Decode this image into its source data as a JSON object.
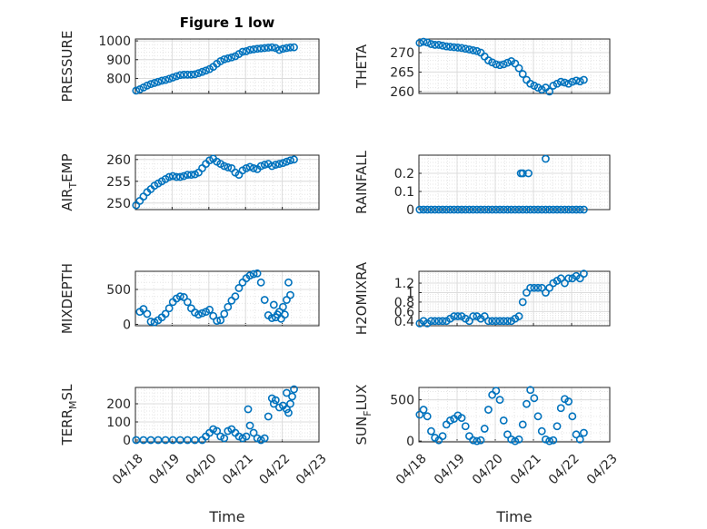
{
  "figure": {
    "title": "Figure 1 low",
    "xlabel": "Time"
  },
  "colors": {
    "marker": "#0072BD",
    "grid": "#dcdcdc",
    "axis": "#262626"
  },
  "chart_data": [
    {
      "type": "scatter",
      "name": "pressure",
      "ylabel": "PRESSURE",
      "xlim": [
        0,
        5
      ],
      "ylim": [
        720,
        1010
      ],
      "xticks": [
        0,
        1,
        2,
        3,
        4,
        5
      ],
      "xticklabels": [
        "04/18",
        "04/19",
        "04/20",
        "04/21",
        "04/22",
        "04/23"
      ],
      "yticks": [
        800,
        900,
        1000
      ],
      "yticklabels": [
        "800",
        "900",
        "1000"
      ],
      "title": "Figure 1 low",
      "grid": true,
      "x": [
        0.0,
        0.1,
        0.2,
        0.3,
        0.4,
        0.5,
        0.6,
        0.7,
        0.8,
        0.9,
        1.0,
        1.1,
        1.2,
        1.3,
        1.4,
        1.5,
        1.6,
        1.7,
        1.8,
        1.9,
        2.0,
        2.1,
        2.2,
        2.3,
        2.4,
        2.5,
        2.6,
        2.7,
        2.8,
        2.9,
        3.0,
        3.1,
        3.2,
        3.3,
        3.4,
        3.5,
        3.6,
        3.7,
        3.8,
        3.9,
        4.0,
        4.1,
        4.2,
        4.3
      ],
      "y": [
        735,
        742,
        752,
        762,
        770,
        776,
        782,
        788,
        792,
        798,
        805,
        812,
        818,
        820,
        820,
        820,
        822,
        828,
        835,
        842,
        850,
        862,
        878,
        892,
        902,
        907,
        912,
        918,
        930,
        942,
        945,
        952,
        955,
        958,
        960,
        962,
        964,
        966,
        962,
        952,
        958,
        962,
        965,
        966
      ]
    },
    {
      "type": "scatter",
      "name": "theta",
      "ylabel": "THETA",
      "xlim": [
        0,
        5
      ],
      "ylim": [
        259.5,
        273.5
      ],
      "xticks": [
        0,
        1,
        2,
        3,
        4,
        5
      ],
      "xticklabels": [
        "04/18",
        "04/19",
        "04/20",
        "04/21",
        "04/22",
        "04/23"
      ],
      "yticks": [
        260,
        265,
        270
      ],
      "yticklabels": [
        "260",
        "265",
        "270"
      ],
      "grid": true,
      "x": [
        0.0,
        0.1,
        0.2,
        0.3,
        0.4,
        0.5,
        0.6,
        0.7,
        0.8,
        0.9,
        1.0,
        1.1,
        1.2,
        1.3,
        1.4,
        1.5,
        1.6,
        1.7,
        1.8,
        1.9,
        2.0,
        2.1,
        2.2,
        2.3,
        2.4,
        2.5,
        2.6,
        2.7,
        2.8,
        2.9,
        3.0,
        3.1,
        3.2,
        3.3,
        3.4,
        3.5,
        3.6,
        3.7,
        3.8,
        3.9,
        4.0,
        4.1,
        4.2,
        4.3
      ],
      "y": [
        272.5,
        272.8,
        272.6,
        272.2,
        272.0,
        272.0,
        271.8,
        271.6,
        271.5,
        271.4,
        271.3,
        271.2,
        271.0,
        270.8,
        270.6,
        270.4,
        270.0,
        269.0,
        268.0,
        267.5,
        267.0,
        266.8,
        267.0,
        267.4,
        267.8,
        267.2,
        266.0,
        264.5,
        263.0,
        262.0,
        261.5,
        261.0,
        260.5,
        261.0,
        260.0,
        261.5,
        262.0,
        262.5,
        262.3,
        262.0,
        262.5,
        262.8,
        262.6,
        263.0
      ]
    },
    {
      "type": "scatter",
      "name": "air_temp",
      "ylabel": "AIR_TEMP",
      "xlim": [
        0,
        5
      ],
      "ylim": [
        248.5,
        261
      ],
      "xticks": [
        0,
        1,
        2,
        3,
        4,
        5
      ],
      "xticklabels": [
        "04/18",
        "04/19",
        "04/20",
        "04/21",
        "04/22",
        "04/23"
      ],
      "yticks": [
        250,
        255,
        260
      ],
      "yticklabels": [
        "250",
        "255",
        "260"
      ],
      "grid": true,
      "x": [
        0.0,
        0.1,
        0.2,
        0.3,
        0.4,
        0.5,
        0.6,
        0.7,
        0.8,
        0.9,
        1.0,
        1.1,
        1.2,
        1.3,
        1.4,
        1.5,
        1.6,
        1.7,
        1.8,
        1.9,
        2.0,
        2.1,
        2.2,
        2.3,
        2.4,
        2.5,
        2.6,
        2.7,
        2.8,
        2.9,
        3.0,
        3.1,
        3.2,
        3.3,
        3.4,
        3.5,
        3.6,
        3.7,
        3.8,
        3.9,
        4.0,
        4.1,
        4.2,
        4.3
      ],
      "y": [
        249.5,
        250.5,
        251.5,
        252.5,
        253.2,
        254.0,
        254.5,
        255.0,
        255.5,
        256.0,
        256.2,
        256.0,
        256.0,
        256.2,
        256.5,
        256.5,
        256.6,
        257.0,
        258.0,
        259.0,
        259.8,
        260.2,
        259.5,
        259.0,
        258.5,
        258.2,
        258.0,
        257.0,
        256.5,
        257.5,
        258.0,
        258.3,
        258.0,
        257.8,
        258.5,
        258.8,
        259.0,
        258.5,
        258.8,
        259.0,
        259.2,
        259.5,
        259.8,
        260.0
      ]
    },
    {
      "type": "scatter",
      "name": "rainfall",
      "ylabel": "RAINFALL",
      "xlim": [
        0,
        5
      ],
      "ylim": [
        0,
        0.3
      ],
      "xticks": [
        0,
        1,
        2,
        3,
        4,
        5
      ],
      "xticklabels": [
        "04/18",
        "04/19",
        "04/20",
        "04/21",
        "04/22",
        "04/23"
      ],
      "yticks": [
        0,
        0.1,
        0.2
      ],
      "yticklabels": [
        "0",
        "0.1",
        "0.2"
      ],
      "grid": true,
      "x": [
        0.0,
        0.1,
        0.2,
        0.3,
        0.4,
        0.5,
        0.6,
        0.7,
        0.8,
        0.9,
        1.0,
        1.1,
        1.2,
        1.3,
        1.4,
        1.5,
        1.6,
        1.7,
        1.8,
        1.9,
        2.0,
        2.1,
        2.2,
        2.3,
        2.4,
        2.5,
        2.6,
        2.7,
        2.8,
        2.9,
        3.0,
        3.1,
        3.2,
        3.3,
        3.4,
        3.5,
        3.6,
        3.7,
        3.8,
        3.9,
        4.0,
        4.1,
        4.2,
        4.3,
        2.65,
        2.7,
        2.85,
        3.3
      ],
      "y": [
        0,
        0,
        0,
        0,
        0,
        0,
        0,
        0,
        0,
        0,
        0,
        0,
        0,
        0,
        0,
        0,
        0,
        0,
        0,
        0,
        0,
        0,
        0,
        0,
        0,
        0,
        0,
        0,
        0,
        0,
        0,
        0,
        0,
        0,
        0,
        0,
        0,
        0,
        0,
        0,
        0,
        0,
        0,
        0,
        0.2,
        0.2,
        0.2,
        0.28
      ]
    },
    {
      "type": "scatter",
      "name": "mixdepth",
      "ylabel": "MIXDEPTH",
      "xlim": [
        0,
        5
      ],
      "ylim": [
        -20,
        760
      ],
      "xticks": [
        0,
        1,
        2,
        3,
        4,
        5
      ],
      "xticklabels": [
        "04/18",
        "04/19",
        "04/20",
        "04/21",
        "04/22",
        "04/23"
      ],
      "yticks": [
        0,
        500
      ],
      "yticklabels": [
        "0",
        "500"
      ],
      "grid": true,
      "x": [
        0.1,
        0.2,
        0.3,
        0.4,
        0.5,
        0.6,
        0.7,
        0.8,
        0.9,
        1.0,
        1.1,
        1.2,
        1.3,
        1.4,
        1.5,
        1.6,
        1.7,
        1.8,
        1.9,
        2.0,
        2.1,
        2.2,
        2.3,
        2.4,
        2.5,
        2.6,
        2.7,
        2.8,
        2.9,
        3.0,
        3.1,
        3.2,
        3.3,
        3.4,
        3.5,
        3.6,
        3.7,
        3.8,
        3.9,
        4.0,
        4.1,
        4.2,
        3.75,
        3.85,
        3.95,
        4.05,
        4.15
      ],
      "y": [
        180,
        220,
        150,
        40,
        30,
        60,
        100,
        150,
        230,
        320,
        370,
        400,
        390,
        320,
        230,
        170,
        140,
        160,
        180,
        210,
        120,
        50,
        60,
        150,
        250,
        340,
        400,
        520,
        600,
        660,
        700,
        720,
        730,
        600,
        350,
        130,
        90,
        100,
        180,
        250,
        350,
        420,
        280,
        140,
        80,
        140,
        600
      ]
    },
    {
      "type": "scatter",
      "name": "h2omixra",
      "ylabel": "H2OMIXRA",
      "xlim": [
        0,
        5
      ],
      "ylim": [
        0.3,
        1.45
      ],
      "xticks": [
        0,
        1,
        2,
        3,
        4,
        5
      ],
      "xticklabels": [
        "04/18",
        "04/19",
        "04/20",
        "04/21",
        "04/22",
        "04/23"
      ],
      "yticks": [
        0.4,
        0.6,
        0.8,
        1,
        1.2
      ],
      "yticklabels": [
        "0.4",
        "0.6",
        "0.8",
        "1",
        "1.2"
      ],
      "grid": true,
      "x": [
        0.0,
        0.1,
        0.2,
        0.3,
        0.4,
        0.5,
        0.6,
        0.7,
        0.8,
        0.9,
        1.0,
        1.1,
        1.2,
        1.3,
        1.4,
        1.5,
        1.6,
        1.7,
        1.8,
        1.9,
        2.0,
        2.1,
        2.2,
        2.3,
        2.4,
        2.5,
        2.6,
        2.7,
        2.8,
        2.9,
        3.0,
        3.1,
        3.2,
        3.3,
        3.4,
        3.5,
        3.6,
        3.7,
        3.8,
        3.9,
        4.0,
        4.1,
        4.2,
        4.3
      ],
      "y": [
        0.35,
        0.4,
        0.35,
        0.4,
        0.4,
        0.4,
        0.4,
        0.4,
        0.45,
        0.5,
        0.5,
        0.5,
        0.45,
        0.4,
        0.5,
        0.5,
        0.45,
        0.5,
        0.4,
        0.4,
        0.4,
        0.4,
        0.4,
        0.4,
        0.4,
        0.45,
        0.5,
        0.8,
        1.0,
        1.1,
        1.1,
        1.1,
        1.1,
        1.0,
        1.1,
        1.2,
        1.25,
        1.3,
        1.2,
        1.3,
        1.3,
        1.35,
        1.3,
        1.4
      ]
    },
    {
      "type": "scatter",
      "name": "terr_msl",
      "ylabel": "TERR_MSL",
      "xlim": [
        0,
        5
      ],
      "ylim": [
        -10,
        290
      ],
      "xticks": [
        0,
        1,
        2,
        3,
        4,
        5
      ],
      "xticklabels": [
        "04/18",
        "04/19",
        "04/20",
        "04/21",
        "04/22",
        "04/23"
      ],
      "yticks": [
        0,
        100,
        200
      ],
      "yticklabels": [
        "0",
        "100",
        "200"
      ],
      "grid": true,
      "x": [
        0.0,
        0.2,
        0.4,
        0.6,
        0.8,
        1.0,
        1.2,
        1.4,
        1.6,
        1.8,
        1.9,
        2.0,
        2.1,
        2.2,
        2.3,
        2.4,
        2.5,
        2.6,
        2.7,
        2.8,
        2.9,
        3.0,
        3.05,
        3.1,
        3.2,
        3.3,
        3.4,
        3.5,
        3.6,
        3.7,
        3.75,
        3.8,
        3.9,
        4.0,
        4.1,
        4.15,
        4.2,
        4.25,
        4.3,
        4.1
      ],
      "y": [
        0,
        0,
        0,
        0,
        0,
        0,
        0,
        0,
        0,
        0,
        20,
        40,
        60,
        50,
        20,
        10,
        50,
        60,
        40,
        20,
        10,
        20,
        170,
        80,
        40,
        10,
        0,
        10,
        130,
        230,
        200,
        220,
        180,
        190,
        170,
        150,
        200,
        240,
        280,
        260
      ]
    },
    {
      "type": "scatter",
      "name": "sun_flux",
      "ylabel": "SUN_FLUX",
      "xlim": [
        0,
        5
      ],
      "ylim": [
        -10,
        650
      ],
      "xticks": [
        0,
        1,
        2,
        3,
        4,
        5
      ],
      "xticklabels": [
        "04/18",
        "04/19",
        "04/20",
        "04/21",
        "04/22",
        "04/23"
      ],
      "yticks": [
        0,
        500
      ],
      "yticklabels": [
        "0",
        "500"
      ],
      "grid": true,
      "x": [
        0.0,
        0.1,
        0.2,
        0.3,
        0.4,
        0.5,
        0.6,
        0.7,
        0.8,
        0.9,
        1.0,
        1.1,
        1.2,
        1.3,
        1.4,
        1.5,
        1.6,
        1.7,
        1.8,
        1.9,
        2.0,
        2.1,
        2.2,
        2.3,
        2.4,
        2.5,
        2.6,
        2.7,
        2.8,
        2.9,
        3.0,
        3.1,
        3.2,
        3.3,
        3.4,
        3.5,
        3.6,
        3.7,
        3.8,
        3.9,
        4.0,
        4.1,
        4.2,
        4.3
      ],
      "y": [
        320,
        380,
        300,
        120,
        40,
        10,
        60,
        200,
        250,
        270,
        310,
        280,
        180,
        60,
        10,
        0,
        10,
        150,
        380,
        560,
        610,
        500,
        250,
        80,
        20,
        0,
        20,
        200,
        450,
        620,
        520,
        300,
        120,
        20,
        0,
        10,
        180,
        400,
        510,
        480,
        300,
        80,
        20,
        100
      ]
    }
  ]
}
